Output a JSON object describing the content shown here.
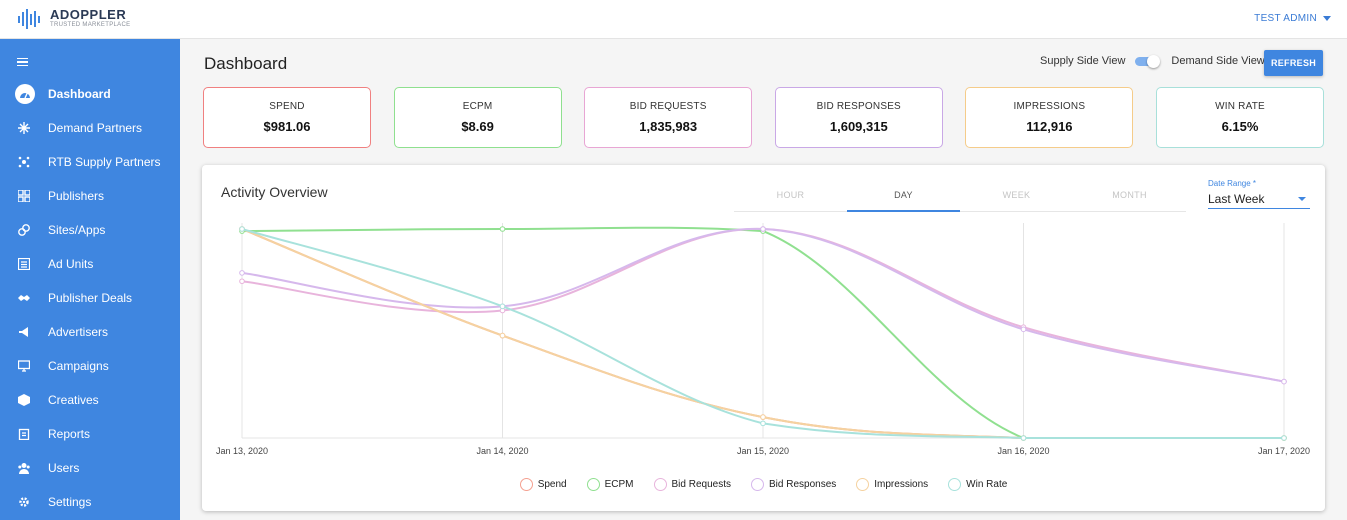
{
  "header": {
    "brand": "ADOPPLER",
    "tagline": "TRUSTED MARKETPLACE",
    "user": "TEST ADMIN"
  },
  "sidebar": {
    "items": [
      {
        "label": "Dashboard",
        "icon": "dashboard-icon",
        "active": true
      },
      {
        "label": "Demand Partners",
        "icon": "snowflake-icon"
      },
      {
        "label": "RTB Supply Partners",
        "icon": "network-icon"
      },
      {
        "label": "Publishers",
        "icon": "grid-icon"
      },
      {
        "label": "Sites/Apps",
        "icon": "apps-icon"
      },
      {
        "label": "Ad Units",
        "icon": "list-icon"
      },
      {
        "label": "Publisher Deals",
        "icon": "handshake-icon"
      },
      {
        "label": "Advertisers",
        "icon": "megaphone-icon"
      },
      {
        "label": "Campaigns",
        "icon": "monitor-icon"
      },
      {
        "label": "Creatives",
        "icon": "cube-icon"
      },
      {
        "label": "Reports",
        "icon": "clipboard-icon"
      },
      {
        "label": "Users",
        "icon": "users-icon"
      },
      {
        "label": "Settings",
        "icon": "gear-icon"
      }
    ]
  },
  "main": {
    "title": "Dashboard",
    "supply_view": "Supply Side View",
    "demand_view": "Demand Side View",
    "refresh": "REFRESH",
    "stats": [
      {
        "label": "SPEND",
        "value": "$981.06",
        "color": "#f08080"
      },
      {
        "label": "ECPM",
        "value": "$8.69",
        "color": "#8fe08f"
      },
      {
        "label": "BID REQUESTS",
        "value": "1,835,983",
        "color": "#e8a6d4"
      },
      {
        "label": "BID RESPONSES",
        "value": "1,609,315",
        "color": "#c9a8e6"
      },
      {
        "label": "IMPRESSIONS",
        "value": "112,916",
        "color": "#f5cc8a"
      },
      {
        "label": "WIN RATE",
        "value": "6.15%",
        "color": "#a8e0da"
      }
    ]
  },
  "activity": {
    "title": "Activity Overview",
    "tabs": [
      "HOUR",
      "DAY",
      "WEEK",
      "MONTH"
    ],
    "active_tab": "DAY",
    "date_range_label": "Date Range *",
    "date_range_value": "Last Week"
  },
  "chart_data": {
    "type": "line",
    "categories": [
      "Jan 13, 2020",
      "Jan 14, 2020",
      "Jan 15, 2020",
      "Jan 16, 2020",
      "Jan 17, 2020"
    ],
    "y_axis_shown": false,
    "grid": "vertical",
    "legend_placement": "bottom",
    "series": [
      {
        "name": "Spend",
        "color": "#f4a090",
        "values": [
          1.0,
          0.49,
          0.1,
          0.0,
          0.0
        ]
      },
      {
        "name": "ECPM",
        "color": "#90e090",
        "values": [
          0.99,
          1.0,
          0.99,
          0.0,
          0.0
        ]
      },
      {
        "name": "Bid Requests",
        "color": "#e8b4dc",
        "values": [
          0.75,
          0.61,
          1.0,
          0.53,
          0.27
        ]
      },
      {
        "name": "Bid Responses",
        "color": "#d6b8ec",
        "values": [
          0.79,
          0.63,
          1.0,
          0.52,
          0.27
        ]
      },
      {
        "name": "Impressions",
        "color": "#f5d2a0",
        "values": [
          1.0,
          0.49,
          0.1,
          0.0,
          0.0
        ]
      },
      {
        "name": "Win Rate",
        "color": "#a8e2dc",
        "values": [
          1.0,
          0.63,
          0.07,
          0.0,
          0.0
        ]
      }
    ]
  }
}
